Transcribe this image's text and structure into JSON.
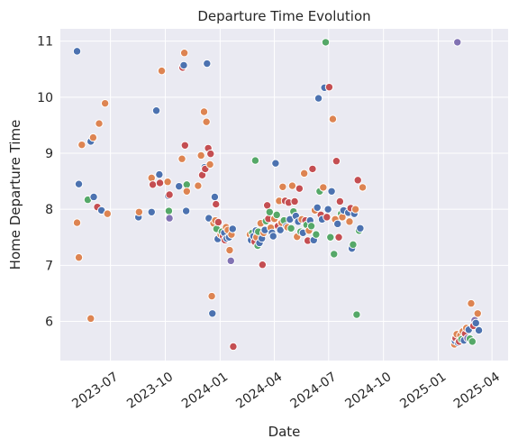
{
  "chart_data": {
    "type": "scatter",
    "title": "Departure Time Evolution",
    "xlabel": "Date",
    "ylabel": "Home Departure Time",
    "xlim": [
      "2023-04-08",
      "2025-04-28"
    ],
    "ylim": [
      5.3,
      11.22
    ],
    "x_ticks": [
      {
        "date": "2023-07-01",
        "label": "2023-07"
      },
      {
        "date": "2023-10-01",
        "label": "2023-10"
      },
      {
        "date": "2024-01-01",
        "label": "2024-01"
      },
      {
        "date": "2024-04-01",
        "label": "2024-04"
      },
      {
        "date": "2024-07-01",
        "label": "2024-07"
      },
      {
        "date": "2024-10-01",
        "label": "2024-10"
      },
      {
        "date": "2025-01-01",
        "label": "2025-01"
      },
      {
        "date": "2025-04-01",
        "label": "2025-04"
      }
    ],
    "y_ticks": [
      6,
      7,
      8,
      9,
      10,
      11
    ],
    "grid": true,
    "legend": "none",
    "colors": {
      "blue": "#4c72b0",
      "orange": "#dd8452",
      "green": "#55a868",
      "red": "#c44e52",
      "purple": "#8172b3"
    },
    "points": [
      {
        "date": "2023-05-06",
        "y": 10.82,
        "color": "blue"
      },
      {
        "date": "2023-05-06",
        "y": 7.76,
        "color": "orange"
      },
      {
        "date": "2023-05-09",
        "y": 8.45,
        "color": "blue"
      },
      {
        "date": "2023-05-09",
        "y": 7.14,
        "color": "orange"
      },
      {
        "date": "2023-05-14",
        "y": 9.15,
        "color": "orange"
      },
      {
        "date": "2023-05-24",
        "y": 8.17,
        "color": "green"
      },
      {
        "date": "2023-05-29",
        "y": 9.21,
        "color": "blue"
      },
      {
        "date": "2023-05-29",
        "y": 6.05,
        "color": "orange"
      },
      {
        "date": "2023-06-02",
        "y": 9.28,
        "color": "orange"
      },
      {
        "date": "2023-06-03",
        "y": 8.22,
        "color": "blue"
      },
      {
        "date": "2023-06-09",
        "y": 8.04,
        "color": "red"
      },
      {
        "date": "2023-06-12",
        "y": 9.53,
        "color": "orange"
      },
      {
        "date": "2023-06-16",
        "y": 7.98,
        "color": "blue"
      },
      {
        "date": "2023-06-22",
        "y": 9.89,
        "color": "orange"
      },
      {
        "date": "2023-06-26",
        "y": 7.92,
        "color": "orange"
      },
      {
        "date": "2023-08-17",
        "y": 7.86,
        "color": "blue"
      },
      {
        "date": "2023-08-18",
        "y": 7.95,
        "color": "orange"
      },
      {
        "date": "2023-09-08",
        "y": 7.95,
        "color": "blue"
      },
      {
        "date": "2023-09-08",
        "y": 8.56,
        "color": "orange"
      },
      {
        "date": "2023-09-10",
        "y": 8.44,
        "color": "red"
      },
      {
        "date": "2023-09-16",
        "y": 9.76,
        "color": "blue"
      },
      {
        "date": "2023-09-21",
        "y": 8.62,
        "color": "blue"
      },
      {
        "date": "2023-09-22",
        "y": 8.47,
        "color": "red"
      },
      {
        "date": "2023-09-25",
        "y": 10.47,
        "color": "orange"
      },
      {
        "date": "2023-10-05",
        "y": 8.49,
        "color": "orange"
      },
      {
        "date": "2023-10-06",
        "y": 8.24,
        "color": "blue"
      },
      {
        "date": "2023-10-07",
        "y": 7.97,
        "color": "green"
      },
      {
        "date": "2023-10-08",
        "y": 8.26,
        "color": "red"
      },
      {
        "date": "2023-10-08",
        "y": 7.84,
        "color": "purple"
      },
      {
        "date": "2023-10-24",
        "y": 8.41,
        "color": "blue"
      },
      {
        "date": "2023-10-29",
        "y": 8.9,
        "color": "orange"
      },
      {
        "date": "2023-10-30",
        "y": 10.53,
        "color": "red"
      },
      {
        "date": "2023-11-01",
        "y": 10.57,
        "color": "blue"
      },
      {
        "date": "2023-11-02",
        "y": 10.79,
        "color": "orange"
      },
      {
        "date": "2023-11-03",
        "y": 9.14,
        "color": "red"
      },
      {
        "date": "2023-11-05",
        "y": 7.97,
        "color": "blue"
      },
      {
        "date": "2023-11-06",
        "y": 8.44,
        "color": "green"
      },
      {
        "date": "2023-11-06",
        "y": 8.32,
        "color": "orange"
      },
      {
        "date": "2023-11-25",
        "y": 8.42,
        "color": "orange"
      },
      {
        "date": "2023-11-30",
        "y": 8.96,
        "color": "orange"
      },
      {
        "date": "2023-12-02",
        "y": 8.61,
        "color": "red"
      },
      {
        "date": "2023-12-05",
        "y": 9.74,
        "color": "orange"
      },
      {
        "date": "2023-12-06",
        "y": 8.75,
        "color": "blue"
      },
      {
        "date": "2023-12-07",
        "y": 8.72,
        "color": "red"
      },
      {
        "date": "2023-12-09",
        "y": 9.56,
        "color": "orange"
      },
      {
        "date": "2023-12-10",
        "y": 10.6,
        "color": "blue"
      },
      {
        "date": "2023-12-12",
        "y": 9.09,
        "color": "red"
      },
      {
        "date": "2023-12-13",
        "y": 7.84,
        "color": "blue"
      },
      {
        "date": "2023-12-15",
        "y": 8.8,
        "color": "orange"
      },
      {
        "date": "2023-12-16",
        "y": 8.99,
        "color": "red"
      },
      {
        "date": "2023-12-18",
        "y": 6.45,
        "color": "orange"
      },
      {
        "date": "2023-12-19",
        "y": 6.14,
        "color": "blue"
      },
      {
        "date": "2023-12-21",
        "y": 7.75,
        "color": "orange"
      },
      {
        "date": "2023-12-23",
        "y": 8.22,
        "color": "blue"
      },
      {
        "date": "2023-12-24",
        "y": 7.8,
        "color": "orange"
      },
      {
        "date": "2023-12-25",
        "y": 8.09,
        "color": "red"
      },
      {
        "date": "2023-12-26",
        "y": 7.65,
        "color": "green"
      },
      {
        "date": "2023-12-28",
        "y": 7.47,
        "color": "blue"
      },
      {
        "date": "2023-12-29",
        "y": 7.77,
        "color": "red"
      },
      {
        "date": "2024-01-02",
        "y": 7.55,
        "color": "orange"
      },
      {
        "date": "2024-01-04",
        "y": 7.6,
        "color": "green"
      },
      {
        "date": "2024-01-06",
        "y": 7.52,
        "color": "red"
      },
      {
        "date": "2024-01-08",
        "y": 7.58,
        "color": "blue"
      },
      {
        "date": "2024-01-09",
        "y": 7.45,
        "color": "red"
      },
      {
        "date": "2024-01-11",
        "y": 7.68,
        "color": "orange"
      },
      {
        "date": "2024-01-12",
        "y": 7.48,
        "color": "blue"
      },
      {
        "date": "2024-01-14",
        "y": 7.63,
        "color": "orange"
      },
      {
        "date": "2024-01-16",
        "y": 7.5,
        "color": "blue"
      },
      {
        "date": "2024-01-17",
        "y": 7.27,
        "color": "orange"
      },
      {
        "date": "2024-01-19",
        "y": 7.08,
        "color": "purple"
      },
      {
        "date": "2024-01-20",
        "y": 7.55,
        "color": "orange"
      },
      {
        "date": "2024-01-22",
        "y": 7.65,
        "color": "blue"
      },
      {
        "date": "2024-01-23",
        "y": 5.55,
        "color": "red"
      },
      {
        "date": "2024-02-20",
        "y": 7.55,
        "color": "orange"
      },
      {
        "date": "2024-02-22",
        "y": 7.45,
        "color": "blue"
      },
      {
        "date": "2024-02-24",
        "y": 7.58,
        "color": "green"
      },
      {
        "date": "2024-02-26",
        "y": 7.52,
        "color": "blue"
      },
      {
        "date": "2024-02-28",
        "y": 7.42,
        "color": "red"
      },
      {
        "date": "2024-02-29",
        "y": 8.87,
        "color": "green"
      },
      {
        "date": "2024-03-01",
        "y": 7.62,
        "color": "blue"
      },
      {
        "date": "2024-03-02",
        "y": 7.5,
        "color": "orange"
      },
      {
        "date": "2024-03-04",
        "y": 7.35,
        "color": "green"
      },
      {
        "date": "2024-03-05",
        "y": 7.6,
        "color": "green"
      },
      {
        "date": "2024-03-07",
        "y": 7.4,
        "color": "blue"
      },
      {
        "date": "2024-03-09",
        "y": 7.75,
        "color": "orange"
      },
      {
        "date": "2024-03-11",
        "y": 7.48,
        "color": "blue"
      },
      {
        "date": "2024-03-12",
        "y": 7.01,
        "color": "red"
      },
      {
        "date": "2024-03-14",
        "y": 7.58,
        "color": "orange"
      },
      {
        "date": "2024-03-16",
        "y": 7.63,
        "color": "blue"
      },
      {
        "date": "2024-03-18",
        "y": 7.79,
        "color": "green"
      },
      {
        "date": "2024-03-20",
        "y": 8.07,
        "color": "red"
      },
      {
        "date": "2024-03-22",
        "y": 7.83,
        "color": "red"
      },
      {
        "date": "2024-03-24",
        "y": 7.95,
        "color": "green"
      },
      {
        "date": "2024-03-26",
        "y": 7.67,
        "color": "orange"
      },
      {
        "date": "2024-03-28",
        "y": 7.58,
        "color": "blue"
      },
      {
        "date": "2024-03-30",
        "y": 7.52,
        "color": "blue"
      },
      {
        "date": "2024-04-01",
        "y": 7.83,
        "color": "orange"
      },
      {
        "date": "2024-04-03",
        "y": 8.82,
        "color": "blue"
      },
      {
        "date": "2024-04-05",
        "y": 7.9,
        "color": "green"
      },
      {
        "date": "2024-04-07",
        "y": 7.7,
        "color": "red"
      },
      {
        "date": "2024-04-09",
        "y": 8.15,
        "color": "orange"
      },
      {
        "date": "2024-04-11",
        "y": 7.63,
        "color": "blue"
      },
      {
        "date": "2024-04-13",
        "y": 7.76,
        "color": "orange"
      },
      {
        "date": "2024-04-15",
        "y": 8.4,
        "color": "orange"
      },
      {
        "date": "2024-04-17",
        "y": 7.8,
        "color": "green"
      },
      {
        "date": "2024-04-19",
        "y": 8.15,
        "color": "red"
      },
      {
        "date": "2024-04-21",
        "y": 7.7,
        "color": "blue"
      },
      {
        "date": "2024-04-23",
        "y": 7.68,
        "color": "orange"
      },
      {
        "date": "2024-04-25",
        "y": 8.12,
        "color": "red"
      },
      {
        "date": "2024-04-27",
        "y": 7.82,
        "color": "blue"
      },
      {
        "date": "2024-04-29",
        "y": 7.66,
        "color": "green"
      },
      {
        "date": "2024-05-01",
        "y": 8.42,
        "color": "orange"
      },
      {
        "date": "2024-05-03",
        "y": 7.96,
        "color": "green"
      },
      {
        "date": "2024-05-05",
        "y": 8.14,
        "color": "red"
      },
      {
        "date": "2024-05-07",
        "y": 7.88,
        "color": "blue"
      },
      {
        "date": "2024-05-09",
        "y": 7.51,
        "color": "orange"
      },
      {
        "date": "2024-05-11",
        "y": 7.78,
        "color": "blue"
      },
      {
        "date": "2024-05-13",
        "y": 8.37,
        "color": "red"
      },
      {
        "date": "2024-05-15",
        "y": 7.6,
        "color": "green"
      },
      {
        "date": "2024-05-17",
        "y": 7.82,
        "color": "orange"
      },
      {
        "date": "2024-05-19",
        "y": 7.58,
        "color": "blue"
      },
      {
        "date": "2024-05-21",
        "y": 8.64,
        "color": "orange"
      },
      {
        "date": "2024-05-23",
        "y": 7.8,
        "color": "red"
      },
      {
        "date": "2024-05-25",
        "y": 7.72,
        "color": "green"
      },
      {
        "date": "2024-05-27",
        "y": 7.44,
        "color": "red"
      },
      {
        "date": "2024-05-29",
        "y": 7.62,
        "color": "orange"
      },
      {
        "date": "2024-05-31",
        "y": 7.8,
        "color": "blue"
      },
      {
        "date": "2024-06-02",
        "y": 7.7,
        "color": "green"
      },
      {
        "date": "2024-06-04",
        "y": 8.72,
        "color": "red"
      },
      {
        "date": "2024-06-06",
        "y": 7.45,
        "color": "blue"
      },
      {
        "date": "2024-06-08",
        "y": 7.98,
        "color": "orange"
      },
      {
        "date": "2024-06-10",
        "y": 7.55,
        "color": "green"
      },
      {
        "date": "2024-06-12",
        "y": 8.03,
        "color": "blue"
      },
      {
        "date": "2024-06-14",
        "y": 9.98,
        "color": "blue"
      },
      {
        "date": "2024-06-16",
        "y": 8.32,
        "color": "green"
      },
      {
        "date": "2024-06-18",
        "y": 7.9,
        "color": "red"
      },
      {
        "date": "2024-06-20",
        "y": 7.82,
        "color": "blue"
      },
      {
        "date": "2024-06-22",
        "y": 8.39,
        "color": "orange"
      },
      {
        "date": "2024-06-24",
        "y": 10.17,
        "color": "blue"
      },
      {
        "date": "2024-06-26",
        "y": 10.98,
        "color": "green"
      },
      {
        "date": "2024-06-28",
        "y": 7.86,
        "color": "red"
      },
      {
        "date": "2024-06-30",
        "y": 8.0,
        "color": "blue"
      },
      {
        "date": "2024-07-02",
        "y": 10.18,
        "color": "red"
      },
      {
        "date": "2024-07-04",
        "y": 7.5,
        "color": "green"
      },
      {
        "date": "2024-07-06",
        "y": 8.32,
        "color": "blue"
      },
      {
        "date": "2024-07-08",
        "y": 9.61,
        "color": "orange"
      },
      {
        "date": "2024-07-10",
        "y": 7.2,
        "color": "green"
      },
      {
        "date": "2024-07-12",
        "y": 7.82,
        "color": "orange"
      },
      {
        "date": "2024-07-14",
        "y": 8.86,
        "color": "red"
      },
      {
        "date": "2024-07-16",
        "y": 7.74,
        "color": "blue"
      },
      {
        "date": "2024-07-18",
        "y": 7.5,
        "color": "red"
      },
      {
        "date": "2024-07-20",
        "y": 8.14,
        "color": "red"
      },
      {
        "date": "2024-07-22",
        "y": 7.92,
        "color": "green"
      },
      {
        "date": "2024-07-24",
        "y": 7.86,
        "color": "orange"
      },
      {
        "date": "2024-07-26",
        "y": 7.98,
        "color": "blue"
      },
      {
        "date": "2024-08-03",
        "y": 7.94,
        "color": "blue"
      },
      {
        "date": "2024-08-05",
        "y": 7.78,
        "color": "orange"
      },
      {
        "date": "2024-08-07",
        "y": 8.02,
        "color": "red"
      },
      {
        "date": "2024-08-09",
        "y": 7.3,
        "color": "blue"
      },
      {
        "date": "2024-08-11",
        "y": 7.37,
        "color": "green"
      },
      {
        "date": "2024-08-13",
        "y": 7.92,
        "color": "blue"
      },
      {
        "date": "2024-08-15",
        "y": 8.0,
        "color": "orange"
      },
      {
        "date": "2024-08-17",
        "y": 6.12,
        "color": "green"
      },
      {
        "date": "2024-08-19",
        "y": 8.52,
        "color": "red"
      },
      {
        "date": "2024-08-21",
        "y": 7.62,
        "color": "green"
      },
      {
        "date": "2024-08-23",
        "y": 7.66,
        "color": "blue"
      },
      {
        "date": "2024-08-27",
        "y": 8.39,
        "color": "orange"
      },
      {
        "date": "2025-01-28",
        "y": 5.59,
        "color": "orange"
      },
      {
        "date": "2025-01-29",
        "y": 5.65,
        "color": "blue"
      },
      {
        "date": "2025-01-30",
        "y": 5.7,
        "color": "red"
      },
      {
        "date": "2025-02-01",
        "y": 5.77,
        "color": "orange"
      },
      {
        "date": "2025-02-02",
        "y": 10.98,
        "color": "purple"
      },
      {
        "date": "2025-02-03",
        "y": 5.62,
        "color": "blue"
      },
      {
        "date": "2025-02-05",
        "y": 5.64,
        "color": "red"
      },
      {
        "date": "2025-02-07",
        "y": 5.75,
        "color": "orange"
      },
      {
        "date": "2025-02-09",
        "y": 5.68,
        "color": "green"
      },
      {
        "date": "2025-02-11",
        "y": 5.82,
        "color": "orange"
      },
      {
        "date": "2025-02-13",
        "y": 5.66,
        "color": "blue"
      },
      {
        "date": "2025-02-15",
        "y": 5.78,
        "color": "red"
      },
      {
        "date": "2025-02-17",
        "y": 5.88,
        "color": "orange"
      },
      {
        "date": "2025-02-19",
        "y": 5.7,
        "color": "purple"
      },
      {
        "date": "2025-02-21",
        "y": 5.85,
        "color": "blue"
      },
      {
        "date": "2025-02-23",
        "y": 5.69,
        "color": "green"
      },
      {
        "date": "2025-02-25",
        "y": 6.32,
        "color": "orange"
      },
      {
        "date": "2025-02-27",
        "y": 5.64,
        "color": "green"
      },
      {
        "date": "2025-03-01",
        "y": 5.92,
        "color": "red"
      },
      {
        "date": "2025-03-03",
        "y": 6.02,
        "color": "purple"
      },
      {
        "date": "2025-03-05",
        "y": 5.97,
        "color": "blue"
      },
      {
        "date": "2025-03-08",
        "y": 6.14,
        "color": "orange"
      },
      {
        "date": "2025-03-10",
        "y": 5.84,
        "color": "blue"
      }
    ]
  }
}
